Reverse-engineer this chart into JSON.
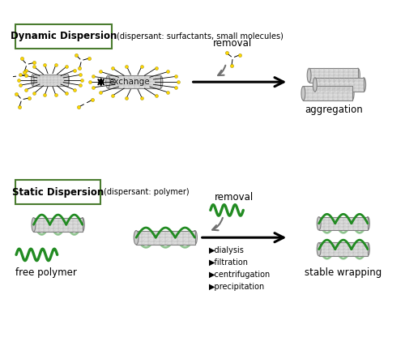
{
  "fig_width": 5.0,
  "fig_height": 4.32,
  "dpi": 100,
  "bg_color": "#ffffff",
  "green_color": "#228B22",
  "yellow_color": "#FFD700",
  "gray_color": "#B0B0B0",
  "dark_gray": "#606060",
  "black": "#000000",
  "box_green": "#4a7c2f",
  "dynamic_title": "Dynamic Dispersion",
  "dynamic_subtitle": "(dispersant: surfactants, small molecules)",
  "static_title": "Static Dispersion",
  "static_subtitle": "(dispersant: polymer)",
  "exchange_text": "exchange",
  "removal_text_1": "removal",
  "removal_text_2": "removal",
  "aggregation_text": "aggregation",
  "free_polymer_text": "free polymer",
  "stable_wrapping_text": "stable wrapping",
  "dialysis_text": "▶dialysis\n▶filtration\n▶centrifugation\n▶precipitation"
}
